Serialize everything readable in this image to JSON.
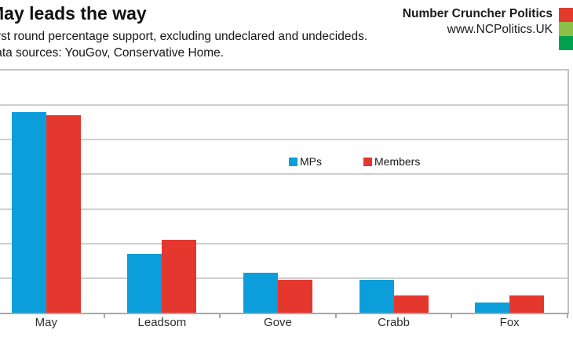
{
  "header": {
    "title": "May leads the way",
    "subtitle": "First round percentage support, excluding undeclared and undecideds.",
    "sources": "Data sources: YouGov, Conservative Home.",
    "brand_name": "Number Cruncher Politics",
    "brand_url": "www.NCPolitics.UK",
    "logo_colors": [
      "#e23b2e",
      "#8cbf45",
      "#00a14e"
    ]
  },
  "chart_data": {
    "type": "bar",
    "title": "May leads the way",
    "categories": [
      "May",
      "Leadsom",
      "Gove",
      "Crabb",
      "Fox"
    ],
    "series": [
      {
        "name": "MPs",
        "color": "#0c9eda",
        "values": [
          58,
          17,
          11.5,
          9.5,
          3
        ]
      },
      {
        "name": "Members",
        "color": "#e4382e",
        "values": [
          57,
          21,
          9.5,
          5,
          5
        ]
      }
    ],
    "xlabel": "",
    "ylabel": "",
    "ylim": [
      0,
      70
    ],
    "gridline_interval": 10,
    "grid": true,
    "y_axis_labels_visible": false,
    "legend_position": "upper-center"
  }
}
